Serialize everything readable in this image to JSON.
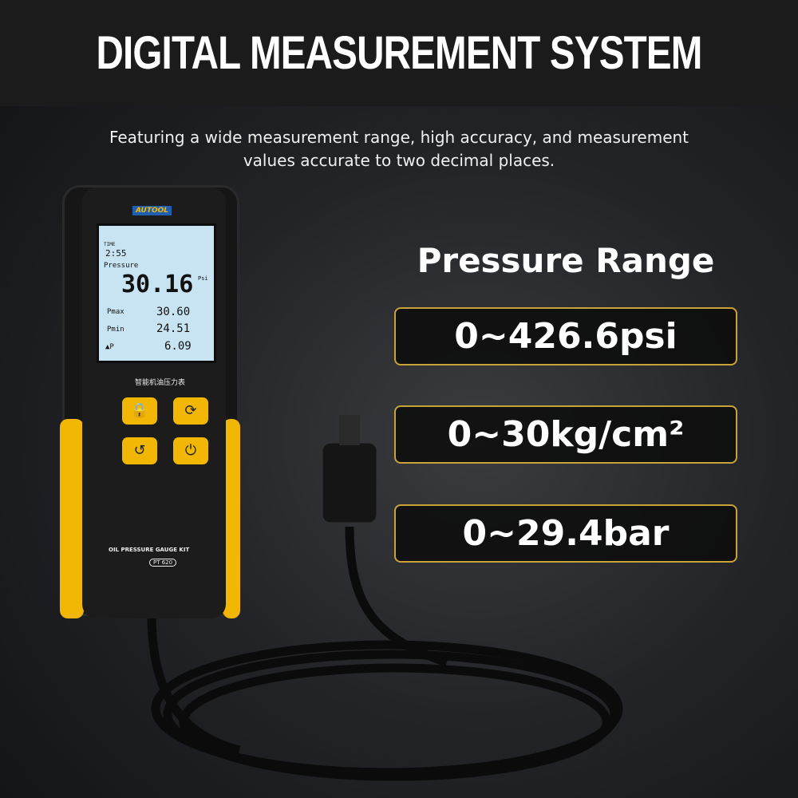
{
  "header": {
    "title": "DIGITAL MEASUREMENT SYSTEM",
    "subtitle_line1": "Featuring a wide measurement range, high accuracy, and measurement",
    "subtitle_line2": "values accurate to two decimal places."
  },
  "specs": {
    "heading": "Pressure Range",
    "ranges": [
      "0~426.6psi",
      "0~30kg/cm²",
      "0~29.4bar"
    ],
    "accent": "#c9a23a"
  },
  "device": {
    "brand": "AUTOOL",
    "time_label": "TIME",
    "time": "2:55",
    "pressure_label": "Pressure",
    "pressure": "30.16",
    "unit": "Psi",
    "pmax_label": "Pmax",
    "pmax": "30.60",
    "pmin_label": "Pmin",
    "pmin": "24.51",
    "dp_label": "▲P",
    "dp": "6.09",
    "chinese_label": "智能机油压力表",
    "kit_label": "OIL PRESSURE GAUGE KIT",
    "model": "PT 620",
    "body_color": "#f2b705"
  }
}
